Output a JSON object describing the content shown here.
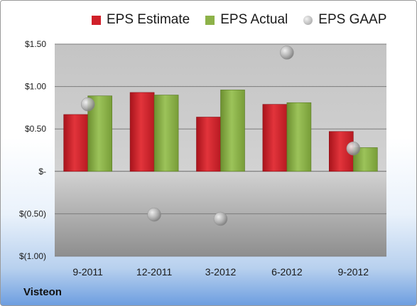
{
  "chart_data": {
    "type": "bar",
    "categories": [
      "9-2011",
      "12-2011",
      "3-2012",
      "6-2012",
      "9-2012"
    ],
    "series": [
      {
        "name": "EPS Estimate",
        "kind": "bar",
        "color": "#d0202a",
        "values": [
          0.67,
          0.93,
          0.64,
          0.79,
          0.47
        ]
      },
      {
        "name": "EPS Actual",
        "kind": "bar",
        "color": "#8db249",
        "values": [
          0.89,
          0.9,
          0.96,
          0.81,
          0.28
        ]
      },
      {
        "name": "EPS GAAP",
        "kind": "scatter",
        "color": "#b8b8b8",
        "values": [
          0.79,
          -0.51,
          -0.56,
          1.4,
          0.27
        ]
      }
    ],
    "ylim": [
      -1.0,
      1.5
    ],
    "yticks": [
      {
        "value": 1.5,
        "label": "$1.50"
      },
      {
        "value": 1.0,
        "label": "$1.00"
      },
      {
        "value": 0.5,
        "label": "$0.50"
      },
      {
        "value": 0.0,
        "label": "$-"
      },
      {
        "value": -0.5,
        "label": "$(0.50)"
      },
      {
        "value": -1.0,
        "label": "$(1.00)"
      }
    ],
    "grid": true,
    "legend_position": "top",
    "title": "",
    "xlabel": "",
    "ylabel": ""
  },
  "legend": {
    "estimate_label": "EPS Estimate",
    "actual_label": "EPS Actual",
    "gaap_label": "EPS GAAP"
  },
  "company": "Visteon"
}
